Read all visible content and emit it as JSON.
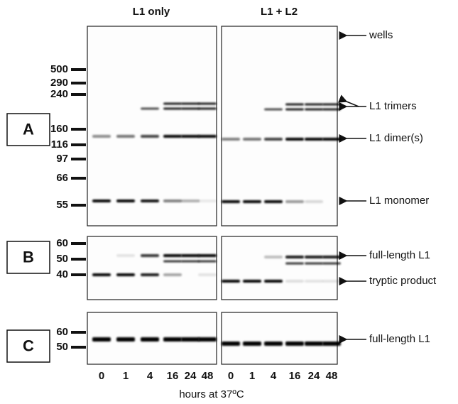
{
  "headers": [
    "L1 only",
    "L1 + L2"
  ],
  "panels": [
    {
      "label": "A",
      "markers": [
        "500",
        "290",
        "240",
        "160",
        "116",
        "97",
        "66",
        "55"
      ],
      "annotations": [
        "wells",
        "L1 trimers",
        "L1 dimer(s)",
        "L1 monomer"
      ]
    },
    {
      "label": "B",
      "markers": [
        "60",
        "50",
        "40"
      ],
      "annotations": [
        "full-length L1",
        "tryptic product"
      ]
    },
    {
      "label": "C",
      "markers": [
        "60",
        "50"
      ],
      "annotations": [
        "full-length L1"
      ]
    }
  ],
  "lanes": [
    "0",
    "1",
    "4",
    "16",
    "24",
    "48"
  ],
  "x_label": "hours at 37ºC"
}
